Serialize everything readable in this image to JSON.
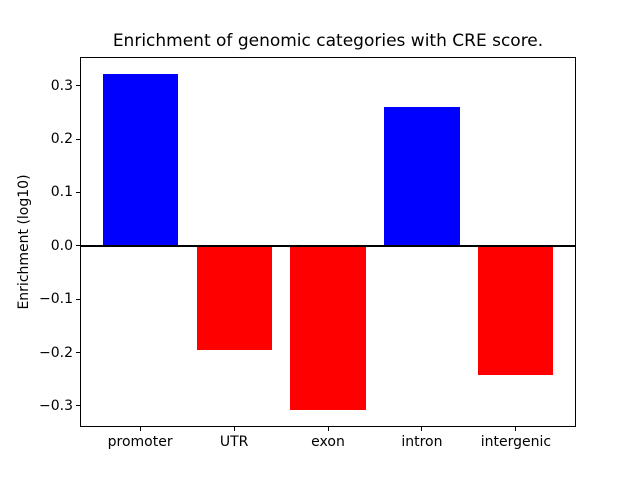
{
  "chart_data": {
    "type": "bar",
    "title": "Enrichment of genomic categories with CRE score.",
    "ylabel": "Enrichment (log10)",
    "xlabel": "",
    "categories": [
      "promoter",
      "UTR",
      "exon",
      "intron",
      "intergenic"
    ],
    "values": [
      0.322,
      -0.195,
      -0.308,
      0.26,
      -0.242
    ],
    "bar_colors": [
      "#0000ff",
      "#ff0000",
      "#ff0000",
      "#0000ff",
      "#ff0000"
    ],
    "positive_color": "#0000ff",
    "negative_color": "#ff0000",
    "bar_width": 0.8,
    "xlim": [
      -0.64,
      4.64
    ],
    "ylim": [
      -0.3395,
      0.3535
    ],
    "yticks": {
      "values": [
        0.3,
        0.2,
        0.1,
        0.0,
        -0.1,
        -0.2,
        -0.3
      ],
      "labels": [
        "0.3",
        "0.2",
        "0.1",
        "0.0",
        "−0.1",
        "−0.2",
        "−0.3"
      ]
    },
    "zero_line": true,
    "zero_line_color": "#000000",
    "grid": false,
    "legend_position": "none",
    "background_color": "#ffffff",
    "spine_color": "#000000",
    "text_color": "#000000"
  }
}
